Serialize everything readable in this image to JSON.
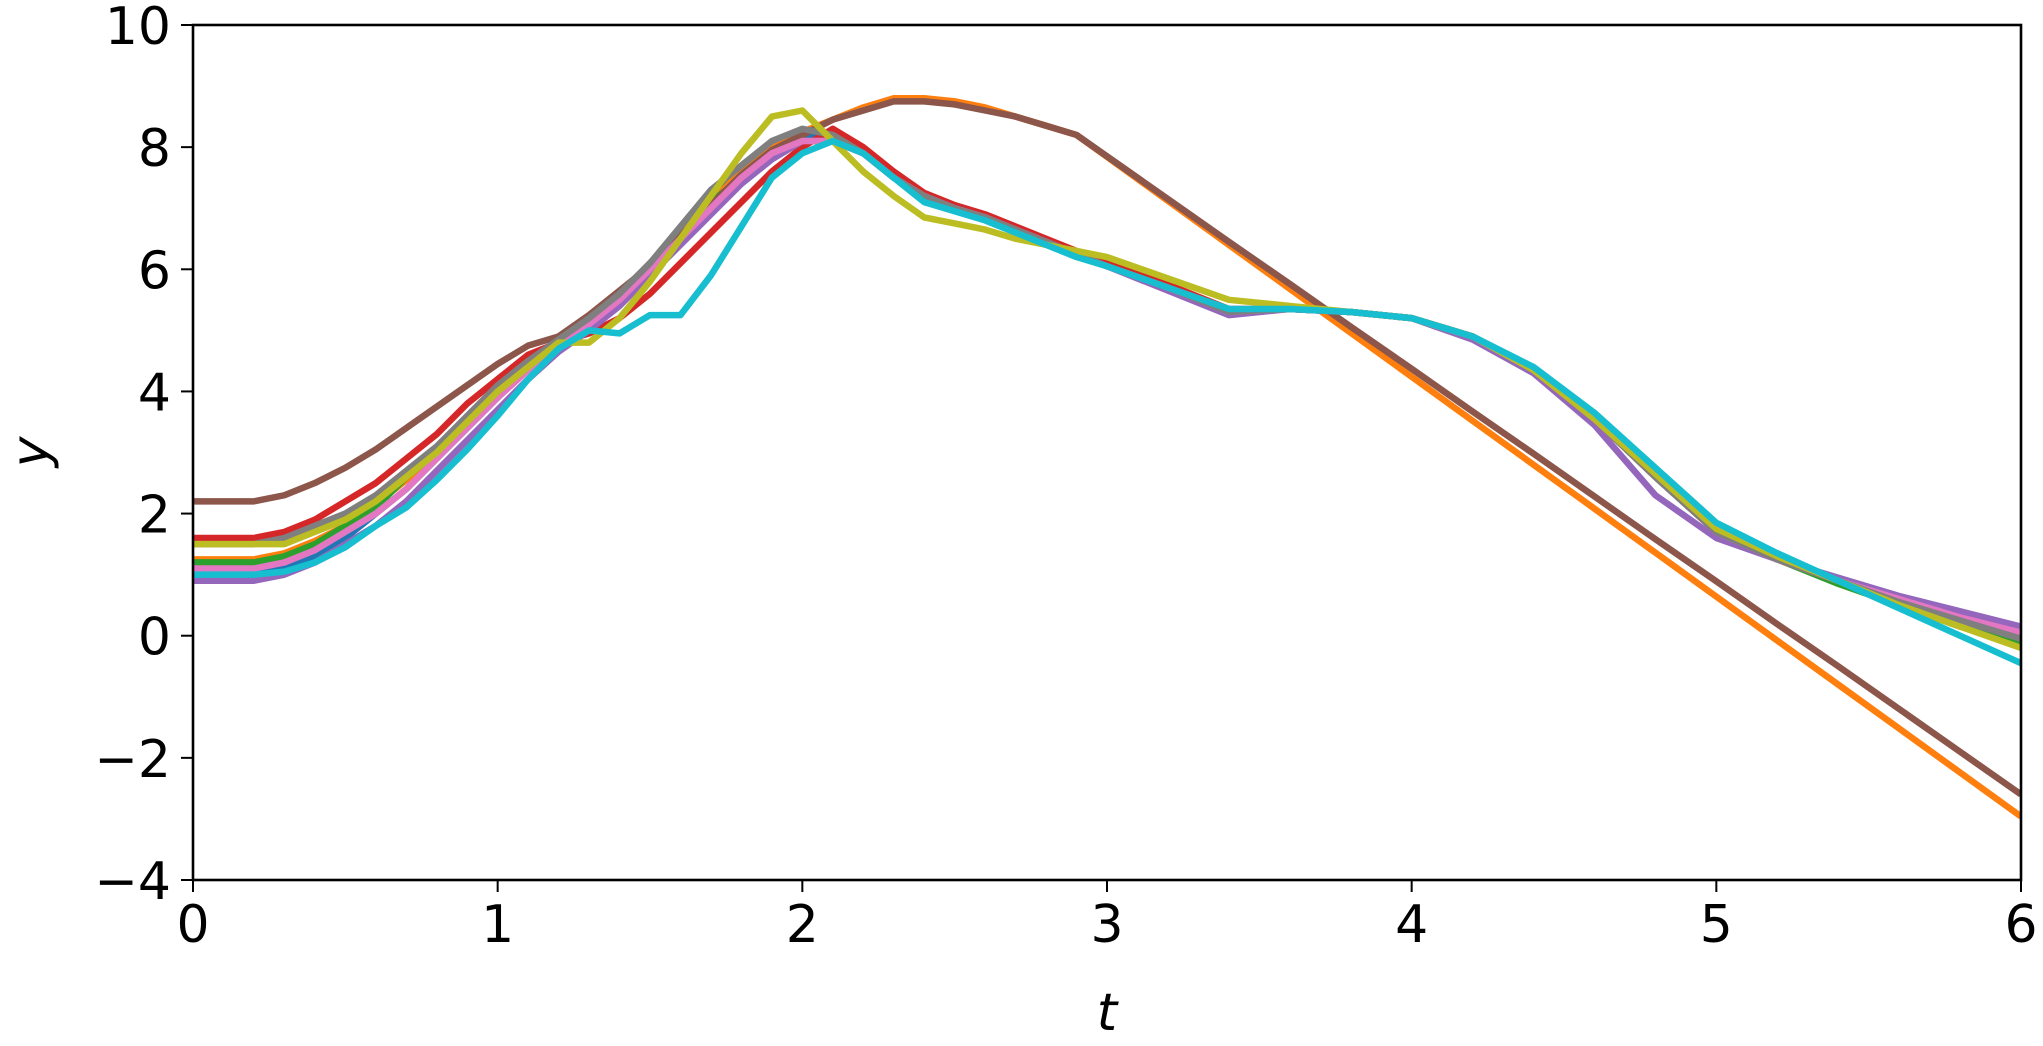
{
  "chart_data": {
    "type": "line",
    "x_label": "t",
    "y_label": "y",
    "x": [
      0,
      0.1,
      0.2,
      0.3,
      0.4,
      0.5,
      0.6,
      0.7,
      0.8,
      0.9,
      1.0,
      1.1,
      1.2,
      1.3,
      1.4,
      1.5,
      1.6,
      1.7,
      1.8,
      1.9,
      2.0,
      2.1,
      2.2,
      2.3,
      2.4,
      2.5,
      2.6,
      2.7,
      2.8,
      2.9,
      3.0,
      3.2,
      3.4,
      3.6,
      3.8,
      4.0,
      4.2,
      4.4,
      4.6,
      4.8,
      5.0,
      5.2,
      5.4,
      5.6,
      5.8,
      6.0
    ],
    "series": [
      {
        "color": "#1f77b4",
        "values": [
          1.0,
          1.0,
          1.0,
          1.1,
          1.3,
          1.6,
          2.0,
          2.4,
          2.9,
          3.4,
          3.9,
          4.4,
          4.8,
          5.2,
          5.6,
          6.1,
          6.6,
          7.2,
          7.6,
          8.0,
          8.2,
          8.1,
          7.9,
          7.5,
          7.2,
          7.0,
          6.85,
          6.65,
          6.45,
          6.25,
          6.05,
          5.7,
          5.3,
          5.35,
          5.3,
          5.2,
          4.9,
          4.35,
          3.55,
          2.6,
          1.7,
          1.25,
          0.9,
          0.55,
          0.25,
          0.0
        ]
      },
      {
        "color": "#ff7f0e",
        "values": [
          1.25,
          1.25,
          1.25,
          1.35,
          1.55,
          1.8,
          2.15,
          2.55,
          3.0,
          3.5,
          4.0,
          4.45,
          4.85,
          5.2,
          5.6,
          6.1,
          6.6,
          7.1,
          7.6,
          8.0,
          8.25,
          8.45,
          8.65,
          8.8,
          8.8,
          8.75,
          8.65,
          8.5,
          8.35,
          8.2,
          7.84,
          7.12,
          6.4,
          5.68,
          4.96,
          4.24,
          3.52,
          2.8,
          2.08,
          1.36,
          0.64,
          -0.08,
          -0.8,
          -1.52,
          -2.24,
          -2.96
        ]
      },
      {
        "color": "#2ca02c",
        "values": [
          1.2,
          1.2,
          1.2,
          1.3,
          1.5,
          1.8,
          2.1,
          2.6,
          3.0,
          3.5,
          4.0,
          4.4,
          4.8,
          5.1,
          5.5,
          6.0,
          6.5,
          7.1,
          7.5,
          7.9,
          8.1,
          8.1,
          7.9,
          7.5,
          7.2,
          7.0,
          6.85,
          6.65,
          6.45,
          6.25,
          6.05,
          5.7,
          5.3,
          5.35,
          5.3,
          5.2,
          4.9,
          4.35,
          3.55,
          2.6,
          1.7,
          1.25,
          0.85,
          0.5,
          0.15,
          -0.15
        ]
      },
      {
        "color": "#d62728",
        "values": [
          1.6,
          1.6,
          1.6,
          1.7,
          1.9,
          2.2,
          2.5,
          2.9,
          3.3,
          3.8,
          4.2,
          4.6,
          4.8,
          4.95,
          5.2,
          5.6,
          6.1,
          6.6,
          7.1,
          7.6,
          8.0,
          8.3,
          8.0,
          7.6,
          7.25,
          7.05,
          6.9,
          6.7,
          6.5,
          6.3,
          6.1,
          5.75,
          5.35,
          5.35,
          5.3,
          5.2,
          4.9,
          4.35,
          3.55,
          2.6,
          1.7,
          1.25,
          0.9,
          0.55,
          0.25,
          0.0
        ]
      },
      {
        "color": "#9467bd",
        "values": [
          0.9,
          0.9,
          0.9,
          1.0,
          1.2,
          1.5,
          1.8,
          2.2,
          2.7,
          3.2,
          3.7,
          4.2,
          4.65,
          5.0,
          5.4,
          5.9,
          6.4,
          6.9,
          7.4,
          7.8,
          8.1,
          8.1,
          7.9,
          7.5,
          7.2,
          7.0,
          6.85,
          6.65,
          6.45,
          6.25,
          6.05,
          5.65,
          5.25,
          5.35,
          5.3,
          5.2,
          4.85,
          4.3,
          3.45,
          2.3,
          1.6,
          1.25,
          0.95,
          0.65,
          0.4,
          0.15
        ]
      },
      {
        "color": "#8c564b",
        "values": [
          2.2,
          2.2,
          2.2,
          2.3,
          2.5,
          2.75,
          3.05,
          3.4,
          3.75,
          4.1,
          4.45,
          4.75,
          4.9,
          5.25,
          5.65,
          6.05,
          6.55,
          7.05,
          7.55,
          7.95,
          8.2,
          8.45,
          8.6,
          8.75,
          8.75,
          8.7,
          8.6,
          8.5,
          8.35,
          8.2,
          7.85,
          7.15,
          6.45,
          5.76,
          5.06,
          4.37,
          3.67,
          2.98,
          2.28,
          1.58,
          0.89,
          0.19,
          -0.5,
          -1.2,
          -1.9,
          -2.6
        ]
      },
      {
        "color": "#e377c2",
        "values": [
          1.1,
          1.1,
          1.1,
          1.2,
          1.4,
          1.7,
          2.0,
          2.4,
          2.9,
          3.4,
          3.9,
          4.35,
          4.75,
          5.1,
          5.5,
          6.0,
          6.5,
          7.0,
          7.5,
          7.9,
          8.1,
          8.1,
          7.9,
          7.5,
          7.2,
          7.0,
          6.85,
          6.65,
          6.45,
          6.25,
          6.05,
          5.7,
          5.3,
          5.35,
          5.3,
          5.2,
          4.9,
          4.35,
          3.55,
          2.6,
          1.7,
          1.25,
          0.9,
          0.6,
          0.3,
          0.05
        ]
      },
      {
        "color": "#7f7f7f",
        "values": [
          1.5,
          1.5,
          1.5,
          1.6,
          1.8,
          2.0,
          2.3,
          2.7,
          3.1,
          3.6,
          4.1,
          4.5,
          4.85,
          5.2,
          5.6,
          6.1,
          6.7,
          7.3,
          7.7,
          8.1,
          8.3,
          8.2,
          7.9,
          7.5,
          7.2,
          7.0,
          6.85,
          6.65,
          6.45,
          6.25,
          6.05,
          5.7,
          5.3,
          5.35,
          5.3,
          5.2,
          4.9,
          4.35,
          3.55,
          2.6,
          1.7,
          1.25,
          0.9,
          0.55,
          0.25,
          -0.05
        ]
      },
      {
        "color": "#bcbd22",
        "values": [
          1.5,
          1.5,
          1.5,
          1.5,
          1.7,
          1.9,
          2.2,
          2.6,
          3.0,
          3.5,
          4.0,
          4.4,
          4.8,
          4.8,
          5.2,
          5.8,
          6.5,
          7.2,
          7.9,
          8.5,
          8.6,
          8.1,
          7.6,
          7.2,
          6.85,
          6.75,
          6.65,
          6.5,
          6.4,
          6.3,
          6.2,
          5.85,
          5.5,
          5.4,
          5.3,
          5.2,
          4.9,
          4.35,
          3.55,
          2.65,
          1.75,
          1.3,
          0.9,
          0.5,
          0.15,
          -0.2
        ]
      },
      {
        "color": "#17becf",
        "values": [
          1.0,
          1.0,
          1.0,
          1.05,
          1.2,
          1.45,
          1.8,
          2.1,
          2.55,
          3.05,
          3.6,
          4.2,
          4.7,
          5.0,
          4.95,
          5.25,
          5.25,
          5.9,
          6.7,
          7.5,
          7.9,
          8.1,
          7.9,
          7.5,
          7.1,
          6.95,
          6.8,
          6.6,
          6.4,
          6.2,
          6.05,
          5.7,
          5.35,
          5.35,
          5.3,
          5.2,
          4.9,
          4.4,
          3.65,
          2.75,
          1.85,
          1.35,
          0.9,
          0.45,
          0.0,
          -0.45
        ]
      }
    ],
    "xlim": [
      0,
      6
    ],
    "xticks": [
      0,
      1,
      2,
      3,
      4,
      5,
      6
    ],
    "ylim": [
      -4,
      10
    ],
    "yticks": [
      {
        "value": -4,
        "label": "−4"
      },
      {
        "value": -2,
        "label": "−2"
      },
      0,
      2,
      4,
      6,
      8,
      10
    ]
  }
}
